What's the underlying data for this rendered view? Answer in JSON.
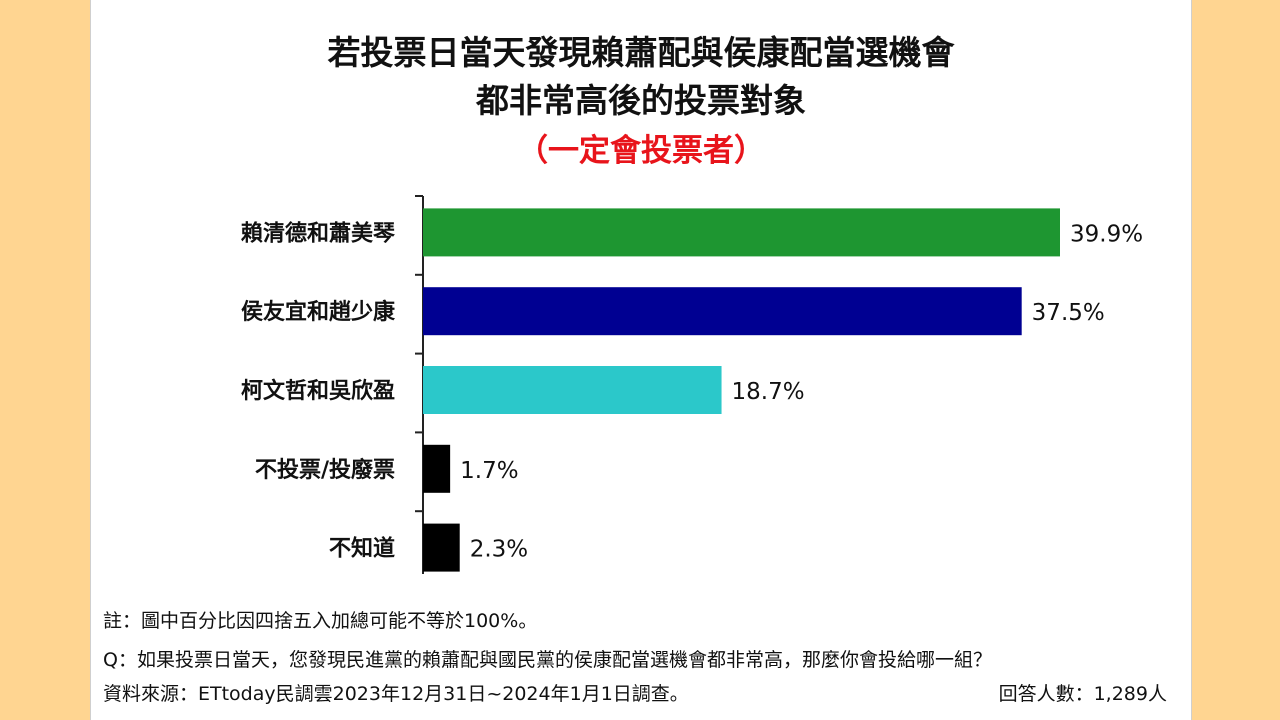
{
  "title_line1": "若投票日當天發現賴蕭配與侯康配當選機會",
  "title_line2": "都非常高後的投票對象",
  "subtitle": "（一定會投票者）",
  "notes": {
    "note": "註：圖中百分比因四捨五入加總可能不等於100%。",
    "question": "Q：如果投票日當天，您發現民進黨的賴蕭配與國民黨的侯康配當選機會都非常高，那麼你會投給哪一組？",
    "source": "資料來源：ETtoday民調雲2023年12月31日~2024年1月1日調查。",
    "respondents": "回答人數：1,289人"
  },
  "chart_data": {
    "type": "bar",
    "orientation": "horizontal",
    "categories": [
      "賴清德和蕭美琴",
      "侯友宜和趙少康",
      "柯文哲和吳欣盈",
      "不投票/投廢票",
      "不知道"
    ],
    "values": [
      39.9,
      37.5,
      18.7,
      1.7,
      2.3
    ],
    "value_labels": [
      "39.9%",
      "37.5%",
      "18.7%",
      "1.7%",
      "2.3%"
    ],
    "colors": [
      "#1E9631",
      "#000092",
      "#2BC8CA",
      "#000000",
      "#000000"
    ],
    "xlim": [
      0,
      42
    ],
    "legend": "none",
    "grid": false
  }
}
